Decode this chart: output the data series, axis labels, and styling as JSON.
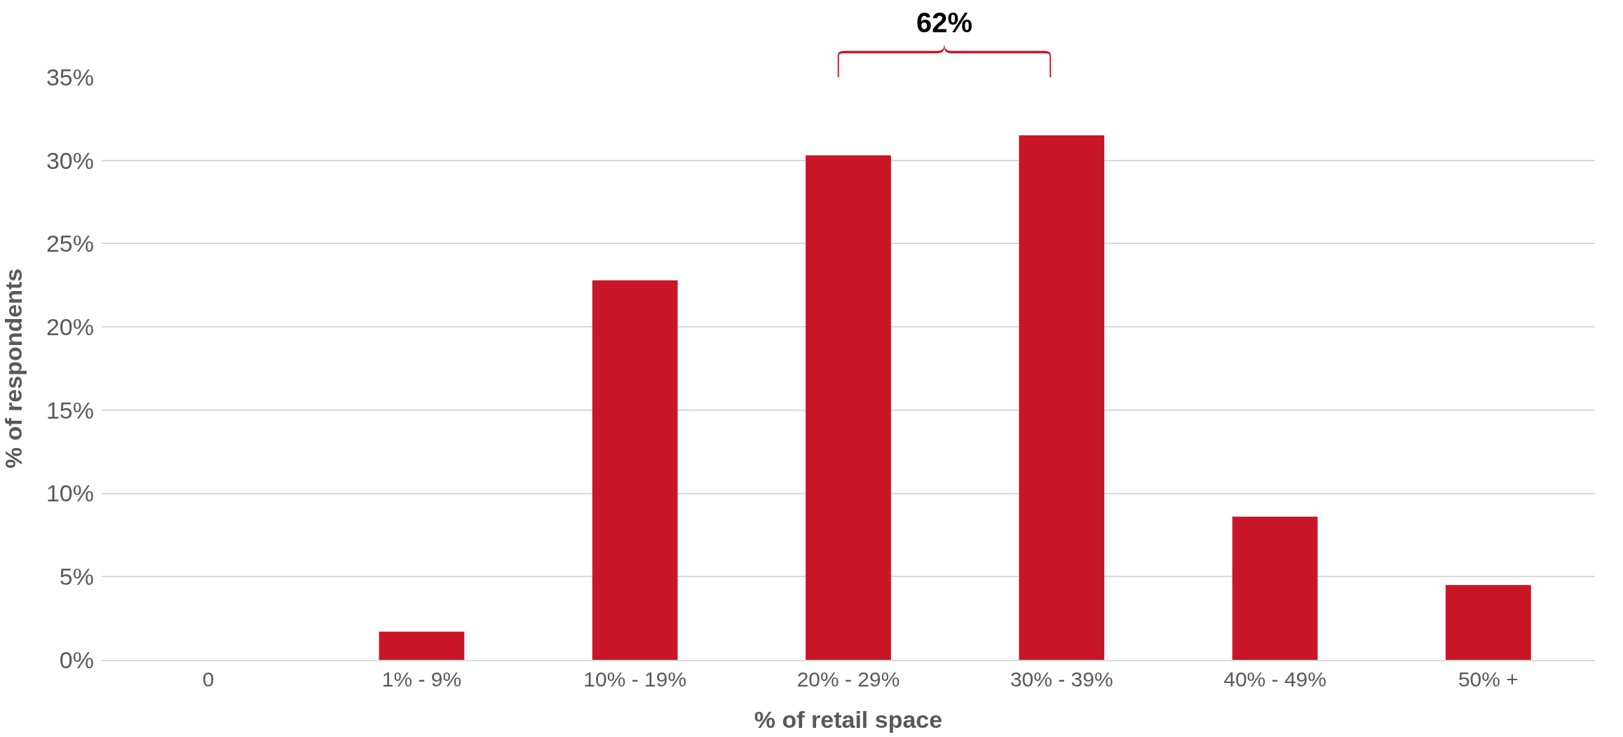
{
  "chart_data": {
    "type": "bar",
    "xlabel": "% of retail space",
    "ylabel": "% of respondents",
    "categories": [
      "0",
      "1% - 9%",
      "10% - 19%",
      "20% - 29%",
      "30% - 39%",
      "40% - 49%",
      "50% +"
    ],
    "values": [
      0,
      1.7,
      22.8,
      30.3,
      31.5,
      8.6,
      4.5
    ],
    "color": "#c81626",
    "ylim": [
      0,
      35
    ],
    "yticks": [
      {
        "value": 0,
        "label": "0%"
      },
      {
        "value": 5,
        "label": "5%"
      },
      {
        "value": 10,
        "label": "10%"
      },
      {
        "value": 15,
        "label": "15%"
      },
      {
        "value": 20,
        "label": "20%"
      },
      {
        "value": 25,
        "label": "25%"
      },
      {
        "value": 30,
        "label": "30%"
      },
      {
        "value": 35,
        "label": "35%"
      }
    ],
    "grid": "y",
    "annotations": [
      "62%"
    ]
  }
}
